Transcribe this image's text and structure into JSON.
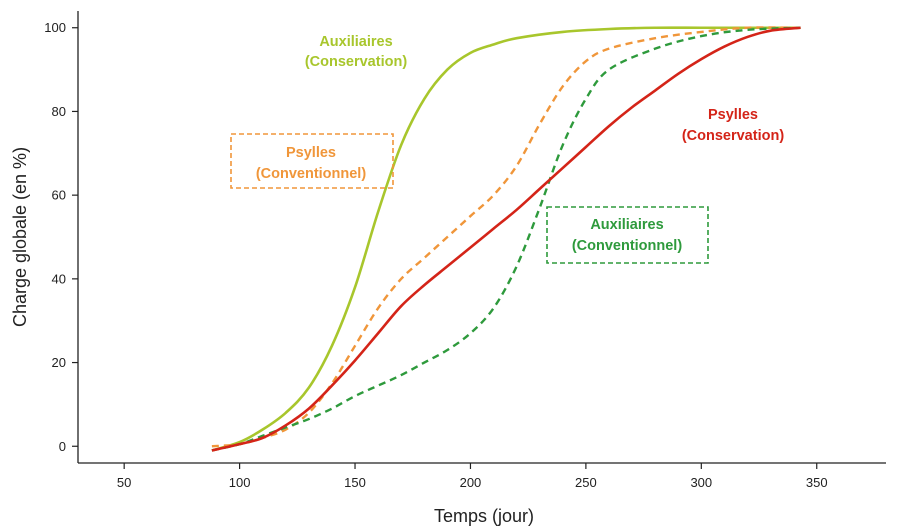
{
  "chart_data": {
    "type": "line",
    "title": "",
    "xlabel": "Temps (jour)",
    "ylabel": "Charge globale (en %)",
    "xlim": [
      30,
      380
    ],
    "ylim": [
      -4,
      104
    ],
    "xticks": [
      50,
      100,
      150,
      200,
      250,
      300,
      350
    ],
    "yticks": [
      0,
      20,
      40,
      60,
      80,
      100
    ],
    "grid": false,
    "series": [
      {
        "key": "aux_cons",
        "label_lines": [
          "Auxiliaires",
          "(Conservation)"
        ],
        "color": "#a8c62c",
        "dash": "solid",
        "boxed": false,
        "x": [
          88,
          100,
          110,
          120,
          130,
          140,
          150,
          160,
          170,
          180,
          190,
          200,
          210,
          220,
          240,
          260,
          280,
          300,
          320,
          343
        ],
        "y": [
          -1,
          1,
          4,
          8,
          14,
          24,
          38,
          56,
          72,
          83,
          90,
          94,
          96,
          97.5,
          99,
          99.7,
          100,
          100,
          100,
          100
        ]
      },
      {
        "key": "psy_conv",
        "label_lines": [
          "Psylles",
          "(Conventionnel)"
        ],
        "color": "#f0963a",
        "dash": "dashed",
        "boxed": true,
        "x": [
          88,
          100,
          110,
          120,
          130,
          140,
          150,
          160,
          170,
          180,
          190,
          200,
          210,
          220,
          230,
          240,
          250,
          260,
          280,
          300,
          320,
          343
        ],
        "y": [
          0,
          0.5,
          2,
          4,
          8,
          15,
          24,
          33,
          40,
          45,
          50,
          55,
          60,
          67,
          77,
          86,
          92,
          95,
          97.5,
          99,
          100,
          100
        ]
      },
      {
        "key": "aux_conv",
        "label_lines": [
          "Auxiliaires",
          "(Conventionnel)"
        ],
        "color": "#2e9a3c",
        "dash": "dashed",
        "boxed": true,
        "x": [
          88,
          100,
          110,
          120,
          130,
          140,
          150,
          160,
          170,
          180,
          190,
          200,
          210,
          220,
          230,
          240,
          250,
          260,
          280,
          300,
          320,
          343
        ],
        "y": [
          -1,
          0.5,
          2.5,
          4.5,
          6.5,
          9,
          12,
          14.5,
          17,
          20,
          23,
          27,
          33,
          43,
          57,
          72,
          83,
          90,
          95,
          98,
          99.5,
          100
        ]
      },
      {
        "key": "psy_cons",
        "label_lines": [
          "Psylles",
          "(Conservation)"
        ],
        "color": "#d42418",
        "dash": "solid",
        "boxed": false,
        "x": [
          88,
          100,
          110,
          120,
          130,
          140,
          150,
          160,
          170,
          180,
          190,
          200,
          210,
          220,
          230,
          240,
          250,
          260,
          270,
          280,
          290,
          300,
          310,
          320,
          330,
          343
        ],
        "y": [
          -1,
          0.5,
          2,
          5,
          9,
          14.5,
          20.5,
          27,
          33.5,
          38.5,
          43,
          47.5,
          52,
          56.5,
          61.5,
          66.5,
          71.5,
          76.5,
          81,
          85,
          89,
          92.5,
          95.5,
          97.8,
          99.3,
          100
        ]
      }
    ]
  }
}
